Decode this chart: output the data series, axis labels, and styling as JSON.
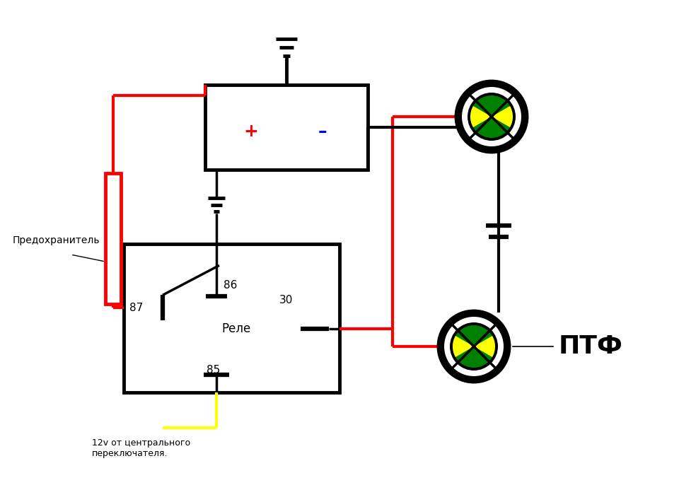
{
  "bg_color": "#ffffff",
  "line_color": "#000000",
  "red_color": "#ff0000",
  "yellow_color": "#ffff00",
  "green_color": "#008000",
  "fuse_label": "Предохранитель",
  "relay_label": "Реле",
  "ptf_label": "ПТФ",
  "switch_label": "12v от центрального\nпереключателя.",
  "pin_86": "86",
  "pin_87": "87",
  "pin_85": "85",
  "pin_30": "30",
  "plus_label": "+",
  "minus_label": "–"
}
